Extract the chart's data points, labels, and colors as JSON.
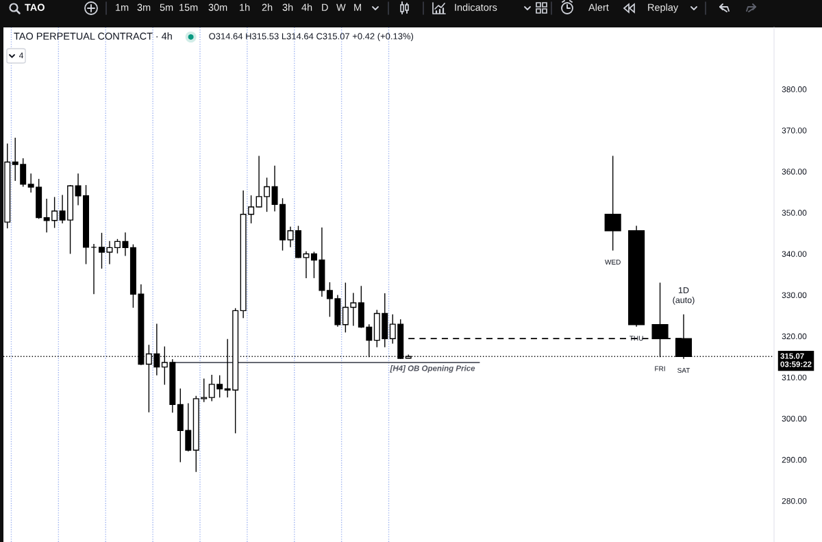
{
  "chart_data": {
    "type": "candlestick",
    "title": "TAO PERPETUAL CONTRACT · 4h",
    "subtitle": "O314.64 H315.53 L314.64 C315.07 +0.42 (+0.13%)",
    "categories": [
      null,
      null,
      null,
      null,
      null,
      null,
      null,
      null,
      null,
      null,
      null,
      null,
      null,
      null,
      null,
      null,
      null,
      null,
      null,
      null,
      null,
      null,
      null,
      null,
      null,
      null,
      null,
      null,
      null,
      null,
      null,
      null,
      null,
      null,
      null,
      null,
      null,
      null,
      null,
      null,
      null,
      null,
      null,
      null,
      null,
      null,
      null,
      null,
      null,
      null,
      null,
      null,
      null,
      null,
      null,
      null,
      null,
      null,
      null,
      null,
      null,
      null,
      null,
      null,
      null,
      null,
      null,
      null,
      null,
      null,
      null,
      null,
      null,
      null,
      null,
      null,
      null,
      null,
      null,
      null,
      null,
      null,
      null,
      null,
      null,
      null,
      null,
      null,
      null,
      null,
      null,
      null,
      null,
      null,
      null,
      null,
      null,
      null
    ],
    "series": [
      {
        "color": "#000000",
        "ohlc": [
          [
            347.7,
            366.8,
            346.2,
            362.3
          ],
          [
            362.3,
            368.2,
            357.7,
            361.7
          ],
          [
            361.7,
            363.2,
            356.3,
            356.9
          ],
          [
            356.9,
            359.5,
            354.9,
            356.2
          ],
          [
            356.2,
            358.2,
            348.5,
            348.8
          ],
          [
            348.8,
            353.4,
            345.2,
            348.1
          ],
          [
            348.1,
            353.8,
            346.3,
            350.4
          ],
          [
            350.4,
            354.3,
            347.4,
            348.2
          ],
          [
            348.2,
            356.7,
            340.0,
            356.5
          ],
          [
            356.5,
            359.5,
            351.8,
            354.1
          ],
          [
            354.1,
            356.7,
            337.5,
            341.6
          ],
          [
            341.6,
            342.4,
            330.2,
            341.6
          ],
          [
            341.6,
            345.1,
            336.4,
            340.4
          ],
          [
            340.4,
            343.1,
            337.5,
            341.5
          ],
          [
            341.5,
            343.6,
            340.1,
            343.0
          ],
          [
            343.0,
            345.2,
            339.5,
            341.5
          ],
          [
            341.5,
            342.3,
            326.9,
            330.2
          ],
          [
            330.2,
            332.6,
            313.0,
            313.2
          ],
          [
            313.2,
            317.9,
            301.5,
            315.7
          ],
          [
            315.7,
            323.0,
            310.5,
            312.5
          ],
          [
            312.5,
            317.5,
            308.2,
            313.6
          ],
          [
            313.6,
            314.4,
            301.4,
            303.4
          ],
          [
            303.4,
            307.3,
            289.4,
            297.1
          ],
          [
            297.1,
            303.7,
            292.0,
            292.3
          ],
          [
            292.3,
            305.5,
            287.0,
            304.8
          ],
          [
            304.8,
            309.7,
            304.0,
            305.1
          ],
          [
            305.1,
            310.6,
            304.2,
            308.3
          ],
          [
            308.3,
            310.5,
            305.1,
            307.2
          ],
          [
            307.2,
            319.3,
            305.1,
            306.9
          ],
          [
            306.9,
            326.8,
            296.4,
            326.2
          ],
          [
            326.2,
            355.4,
            324.4,
            349.6
          ],
          [
            349.6,
            354.2,
            347.4,
            351.4
          ],
          [
            351.4,
            363.8,
            351.3,
            353.9
          ],
          [
            353.9,
            358.5,
            350.2,
            356.3
          ],
          [
            356.3,
            361.4,
            350.3,
            352.0
          ],
          [
            352.0,
            353.5,
            340.8,
            343.4
          ],
          [
            343.4,
            346.6,
            341.6,
            345.6
          ],
          [
            345.6,
            346.8,
            339.0,
            339.1
          ],
          [
            339.1,
            340.6,
            334.1,
            340.0
          ],
          [
            340.0,
            340.5,
            334.1,
            338.5
          ],
          [
            338.5,
            346.4,
            329.6,
            331.1
          ],
          [
            331.1,
            333.1,
            324.7,
            329.1
          ],
          [
            329.1,
            330.0,
            322.3,
            322.8
          ],
          [
            322.8,
            333.0,
            320.9,
            327.0
          ],
          [
            327.0,
            330.5,
            322.5,
            328.1
          ],
          [
            328.1,
            332.2,
            322.0,
            322.2
          ],
          [
            322.2,
            322.9,
            314.9,
            319.0
          ],
          [
            319.0,
            326.4,
            317.3,
            325.5
          ],
          [
            325.5,
            330.4,
            317.3,
            319.4
          ],
          [
            319.4,
            325.3,
            318.2,
            322.9
          ],
          [
            322.9,
            324.1,
            314.5,
            314.6
          ],
          [
            314.64,
            315.53,
            314.64,
            315.07
          ],
          null,
          null,
          null,
          null,
          null,
          null,
          null,
          null,
          null,
          null,
          null,
          null,
          null,
          null,
          null,
          null,
          null,
          null,
          null,
          null,
          null,
          null,
          null,
          null,
          null,
          null,
          null,
          null,
          null,
          null,
          null,
          null,
          null,
          null,
          null,
          null,
          null,
          null,
          null,
          null,
          null,
          null,
          null,
          null,
          null,
          null
        ]
      },
      {
        "name": "1D\n(auto)",
        "color": "#000000",
        "ohlc": [
          null,
          null,
          null,
          null,
          null,
          null,
          null,
          null,
          null,
          null,
          null,
          null,
          null,
          null,
          null,
          null,
          null,
          null,
          null,
          null,
          null,
          null,
          null,
          null,
          null,
          null,
          null,
          null,
          null,
          null,
          null,
          null,
          null,
          null,
          null,
          null,
          null,
          null,
          null,
          null,
          null,
          null,
          null,
          null,
          null,
          null,
          null,
          null,
          null,
          null,
          null,
          null,
          null,
          null,
          null,
          null,
          null,
          null,
          null,
          null,
          null,
          null,
          null,
          null,
          null,
          null,
          null,
          null,
          null,
          null,
          null,
          null,
          null,
          null,
          null,
          null,
          null,
          [
            349.6,
            363.8,
            340.8,
            345.6
          ],
          null,
          null,
          [
            345.6,
            346.8,
            322.3,
            322.8
          ],
          null,
          null,
          [
            322.8,
            333.0,
            314.9,
            319.4
          ],
          null,
          null,
          [
            319.4,
            325.3,
            314.5,
            315.07
          ],
          null,
          null,
          null,
          null,
          null,
          null,
          null,
          null,
          null,
          null,
          null
        ],
        "value_labels": [
          null,
          null,
          null,
          null,
          null,
          null,
          null,
          null,
          null,
          null,
          null,
          null,
          null,
          null,
          null,
          null,
          null,
          null,
          null,
          null,
          null,
          null,
          null,
          null,
          null,
          null,
          null,
          null,
          null,
          null,
          null,
          null,
          null,
          null,
          null,
          null,
          null,
          null,
          null,
          null,
          null,
          null,
          null,
          null,
          null,
          null,
          null,
          null,
          null,
          null,
          null,
          null,
          null,
          null,
          null,
          null,
          null,
          null,
          null,
          null,
          null,
          null,
          null,
          null,
          null,
          null,
          null,
          null,
          null,
          null,
          null,
          null,
          null,
          null,
          null,
          null,
          null,
          "WED",
          null,
          null,
          "THU",
          null,
          null,
          "FRI",
          null,
          null,
          "SAT",
          null,
          null,
          null,
          null,
          null,
          null,
          null,
          null,
          null,
          null,
          null
        ]
      },
      {
        "type": "line",
        "name": "[H4] OB Opening Price",
        "color": "#50535e",
        "line_style": "solid",
        "values": [
          null,
          null,
          null,
          null,
          null,
          null,
          null,
          null,
          null,
          null,
          null,
          null,
          null,
          null,
          null,
          null,
          null,
          null,
          null,
          null,
          null,
          313.6,
          313.6,
          313.6,
          313.6,
          313.6,
          313.6,
          313.6,
          313.6,
          313.6,
          313.6,
          313.6,
          313.6,
          313.6,
          313.6,
          313.6,
          313.6,
          313.6,
          313.6,
          313.6,
          313.6,
          313.6,
          313.6,
          313.6,
          313.6,
          313.6,
          313.6,
          313.6,
          313.6,
          313.6,
          313.6,
          313.6,
          313.6,
          313.6,
          313.6,
          313.6,
          313.6,
          313.6,
          313.6,
          313.6,
          313.6,
          null,
          null,
          null,
          null,
          null,
          null,
          null,
          null,
          null,
          null,
          null,
          null,
          null,
          null,
          null,
          null,
          null,
          null,
          null,
          null,
          null,
          null,
          null,
          null,
          null,
          null,
          null,
          null,
          null,
          null,
          null,
          null,
          null,
          null,
          null,
          null,
          null
        ]
      },
      {
        "type": "line",
        "color": "#000000",
        "line_style": "dashed",
        "values": [
          null,
          null,
          null,
          null,
          null,
          null,
          null,
          null,
          null,
          null,
          null,
          null,
          null,
          null,
          null,
          null,
          null,
          null,
          null,
          null,
          null,
          null,
          null,
          null,
          null,
          null,
          null,
          null,
          null,
          null,
          null,
          null,
          null,
          null,
          null,
          null,
          null,
          null,
          null,
          null,
          null,
          null,
          null,
          null,
          null,
          null,
          null,
          null,
          null,
          null,
          null,
          319.4,
          319.4,
          319.4,
          319.4,
          319.4,
          319.4,
          319.4,
          319.4,
          319.4,
          319.4,
          319.4,
          319.4,
          319.4,
          319.4,
          319.4,
          319.4,
          319.4,
          319.4,
          319.4,
          319.4,
          319.4,
          319.4,
          319.4,
          319.4,
          319.4,
          319.4,
          319.4,
          319.4,
          319.4,
          319.4,
          319.4,
          319.4,
          319.4,
          319.4,
          319.4,
          319.4,
          null,
          null,
          null,
          null,
          null,
          null,
          null,
          null,
          null,
          null,
          null
        ]
      }
    ],
    "ylim": [
      270,
      395
    ],
    "yticks": [
      {
        "value": 280,
        "label": "280.00"
      },
      {
        "value": 290,
        "label": "290.00"
      },
      {
        "value": 300,
        "label": "300.00"
      },
      {
        "value": 310,
        "label": "310.00"
      },
      {
        "value": 320,
        "label": "320.00"
      },
      {
        "value": 330,
        "label": "330.00"
      },
      {
        "value": 340,
        "label": "340.00"
      },
      {
        "value": 350,
        "label": "350.00"
      },
      {
        "value": 360,
        "label": "360.00"
      },
      {
        "value": 370,
        "label": "370.00"
      },
      {
        "value": 380,
        "label": "380.00"
      }
    ],
    "ref_lines": [
      {
        "axis": "y",
        "value": 315.07,
        "label": "315.07\n03:59:22",
        "color": "#000000",
        "line_style": "dotted"
      }
    ],
    "annotations": [
      "TAO",
      "1m",
      "3m",
      "5m",
      "15m",
      "30m",
      "1h",
      "2h",
      "3h",
      "4h",
      "D",
      "W",
      "M",
      "Indicators",
      "Alert",
      "Replay",
      "4"
    ],
    "tick_labels": "y"
  }
}
